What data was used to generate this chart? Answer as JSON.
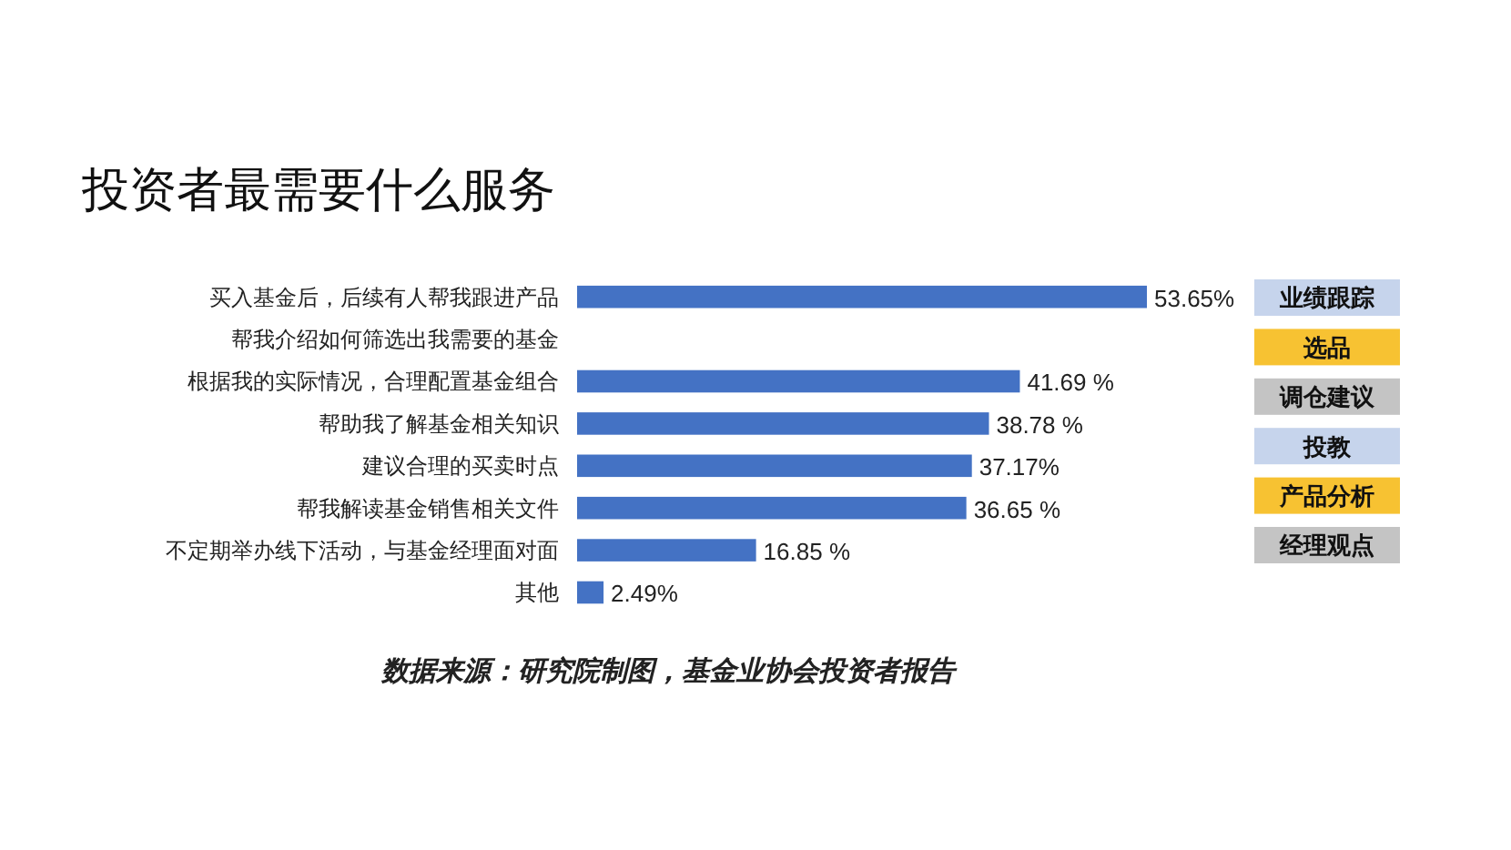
{
  "chart_data": {
    "type": "bar",
    "orientation": "horizontal",
    "title": "投资者最需要什么服务",
    "categories": [
      "买入基金后，后续有人帮我跟进产品",
      "帮我介绍如何筛选出我需要的基金",
      "根据我的实际情况，合理配置基金组合",
      "帮助我了解基金相关知识",
      "建议合理的买卖时点",
      "帮我解读基金销售相关文件",
      "不定期举办线下活动，与基金经理面对面",
      "其他"
    ],
    "values": [
      53.65,
      null,
      41.69,
      38.78,
      37.17,
      36.65,
      16.85,
      2.49
    ],
    "value_labels": [
      "53.65%",
      null,
      "41.69 %",
      "38.78 %",
      "37.17%",
      "36.65 %",
      "16.85 %",
      "2.49%"
    ],
    "color": "#4472c4",
    "annotations": [
      "业绩跟踪",
      "选品",
      "调仓建议",
      "投教",
      "产品分析",
      "经理观点",
      "数据来源：研究院制图，基金业协会投资者报告"
    ]
  }
}
